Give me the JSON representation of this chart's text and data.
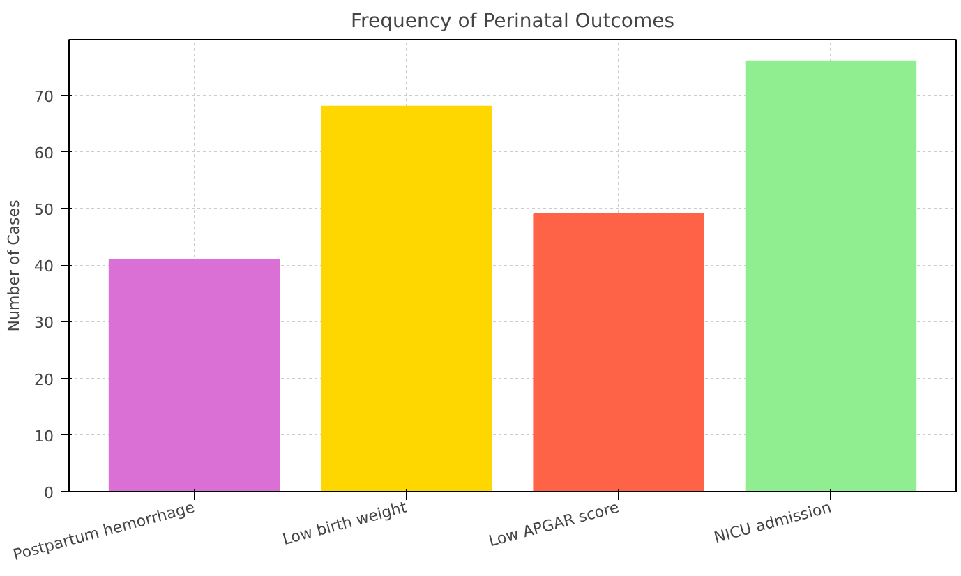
{
  "chart_data": {
    "type": "bar",
    "title": "Frequency of Perinatal Outcomes",
    "ylabel": "Number of Cases",
    "categories": [
      "Postpartum hemorrhage",
      "Low birth weight",
      "Low APGAR score",
      "NICU admission"
    ],
    "values": [
      41,
      68,
      49,
      76
    ],
    "colors": [
      "#da70d6",
      "#ffd700",
      "#ff6347",
      "#90ee90"
    ],
    "ylim": [
      0,
      79.8
    ],
    "yticks": [
      0,
      10,
      20,
      30,
      40,
      50,
      60,
      70
    ],
    "grid": true
  }
}
